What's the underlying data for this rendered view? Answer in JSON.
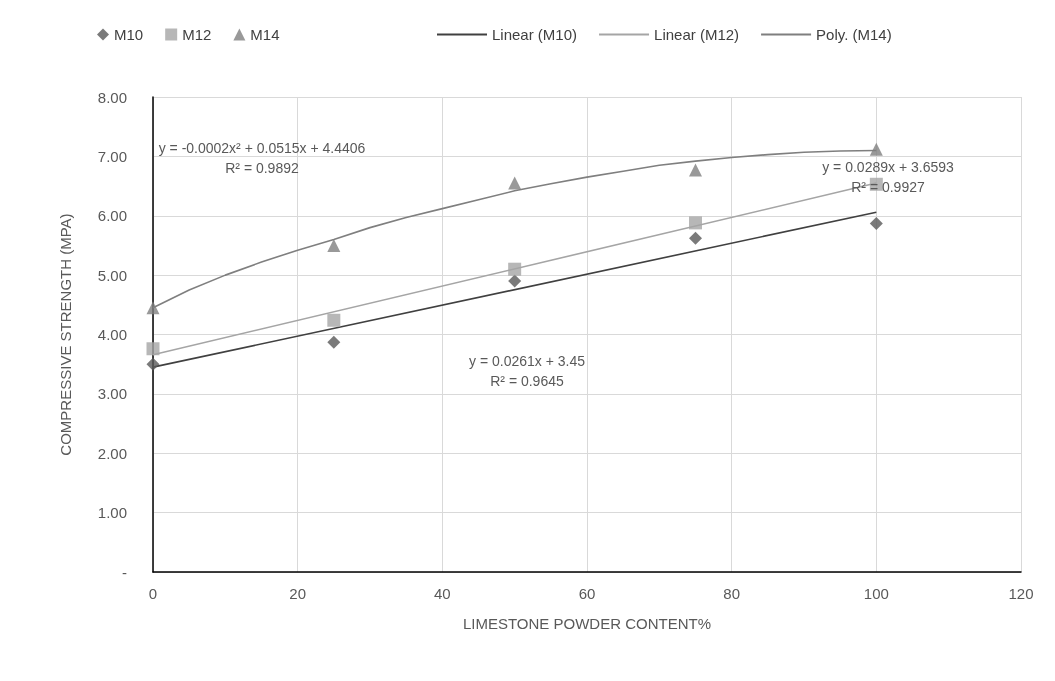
{
  "chart_data": {
    "type": "scatter",
    "xlabel": "LIMESTONE POWDER CONTENT%",
    "ylabel": "COMPRESSIVE STRENGTH (MPA)",
    "x": [
      0,
      25,
      50,
      75,
      100
    ],
    "series": [
      {
        "name": "M10",
        "type": "scatter",
        "marker": "diamond",
        "color": "#595959",
        "values": [
          3.5,
          3.87,
          4.9,
          5.62,
          5.87
        ]
      },
      {
        "name": "M12",
        "type": "scatter",
        "marker": "square",
        "color": "#a5a5a5",
        "values": [
          3.76,
          4.24,
          5.1,
          5.88,
          6.53
        ]
      },
      {
        "name": "M14",
        "type": "scatter",
        "marker": "triangle",
        "color": "#7f7f7f",
        "values": [
          4.45,
          5.5,
          6.55,
          6.77,
          7.12
        ]
      },
      {
        "name": "Linear (M10)",
        "type": "line",
        "marker": "none",
        "color": "#404040",
        "x": [
          0,
          100
        ],
        "values": [
          3.45,
          6.06
        ]
      },
      {
        "name": "Linear (M12)",
        "type": "line",
        "marker": "none",
        "color": "#a5a5a5",
        "x": [
          0,
          100
        ],
        "values": [
          3.66,
          6.55
        ]
      },
      {
        "name": "Poly. (M14)",
        "type": "line",
        "marker": "none",
        "color": "#7f7f7f",
        "x": [
          0,
          5,
          10,
          15,
          20,
          25,
          30,
          35,
          40,
          45,
          50,
          55,
          60,
          65,
          70,
          75,
          80,
          85,
          90,
          95,
          100
        ],
        "values": [
          4.45,
          4.75,
          5.0,
          5.22,
          5.42,
          5.6,
          5.8,
          5.97,
          6.12,
          6.27,
          6.42,
          6.54,
          6.65,
          6.75,
          6.85,
          6.92,
          6.98,
          7.03,
          7.07,
          7.09,
          7.1
        ]
      }
    ],
    "xlim": [
      0,
      120
    ],
    "xticks": [
      0,
      20,
      40,
      60,
      80,
      100,
      120
    ],
    "ylim": [
      0,
      8
    ],
    "yticks": [
      {
        "value": 0,
        "label": "-"
      },
      {
        "value": 1,
        "label": "1.00"
      },
      {
        "value": 2,
        "label": "2.00"
      },
      {
        "value": 3,
        "label": "3.00"
      },
      {
        "value": 4,
        "label": "4.00"
      },
      {
        "value": 5,
        "label": "5.00"
      },
      {
        "value": 6,
        "label": "6.00"
      },
      {
        "value": 7,
        "label": "7.00"
      },
      {
        "value": 8,
        "label": "8.00"
      }
    ],
    "grid": true,
    "legend": "top",
    "annotations": [
      "y = -0.0002x² + 0.0515x + 4.4406\nR² = 0.9892",
      "y = 0.0289x + 3.6593\nR² = 0.9927",
      "y = 0.0261x + 3.45\nR² = 0.9645"
    ]
  }
}
